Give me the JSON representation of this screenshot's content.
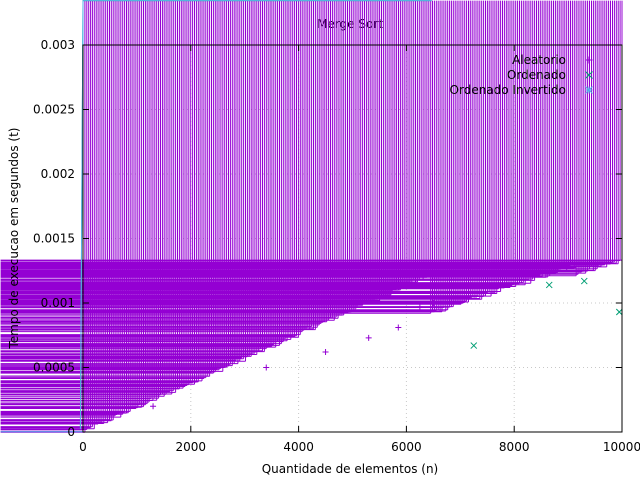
{
  "chart_data": {
    "type": "scatter",
    "title": "Merge Sort",
    "xlabel": "Quantidade de elementos (n)",
    "ylabel": "Tempo de execucao em segundos (t)",
    "xlim": [
      0,
      10000
    ],
    "ylim": [
      0,
      0.003
    ],
    "xticks": [
      0,
      2000,
      4000,
      6000,
      8000,
      10000
    ],
    "xtick_labels": [
      "0",
      "2000",
      "4000",
      "6000",
      "8000",
      "10000"
    ],
    "yticks": [
      0,
      0.0005,
      0.001,
      0.0015,
      0.002,
      0.0025,
      0.003
    ],
    "ytick_labels": [
      "0",
      "0.0005",
      "0.001",
      "0.0015",
      "0.002",
      "0.0025",
      "0.003"
    ],
    "grid": true,
    "legend_position": "top-right",
    "series": [
      {
        "name": "Aleatorio",
        "color": "#9400D3",
        "marker": "plus",
        "segments": [
          [
            0,
            0.0,
            6450,
            0.00122
          ],
          [
            6450,
            0.00092,
            9150,
            0.00129
          ],
          [
            9150,
            0.00123,
            10000,
            0.00133
          ]
        ],
        "outliers": [
          [
            1300,
            0.0002
          ],
          [
            3400,
            0.0005
          ],
          [
            4500,
            0.00062
          ],
          [
            5300,
            0.00073
          ],
          [
            5850,
            0.00081
          ],
          [
            6250,
            0.00097
          ],
          [
            6500,
            0.001
          ]
        ]
      },
      {
        "name": "Ordenado",
        "color": "#009E73",
        "marker": "x",
        "segments": [
          [
            0,
            0.0,
            10000,
            0.00084
          ]
        ],
        "outliers": [
          [
            7250,
            0.00067
          ],
          [
            8650,
            0.00114
          ],
          [
            9300,
            0.00117
          ],
          [
            9950,
            0.00093
          ]
        ]
      },
      {
        "name": "Ordenado Invertido",
        "color": "#56B4E9",
        "marker": "star",
        "segments": [
          [
            0,
            0.0,
            10000,
            0.00076
          ]
        ],
        "outliers": []
      }
    ]
  }
}
